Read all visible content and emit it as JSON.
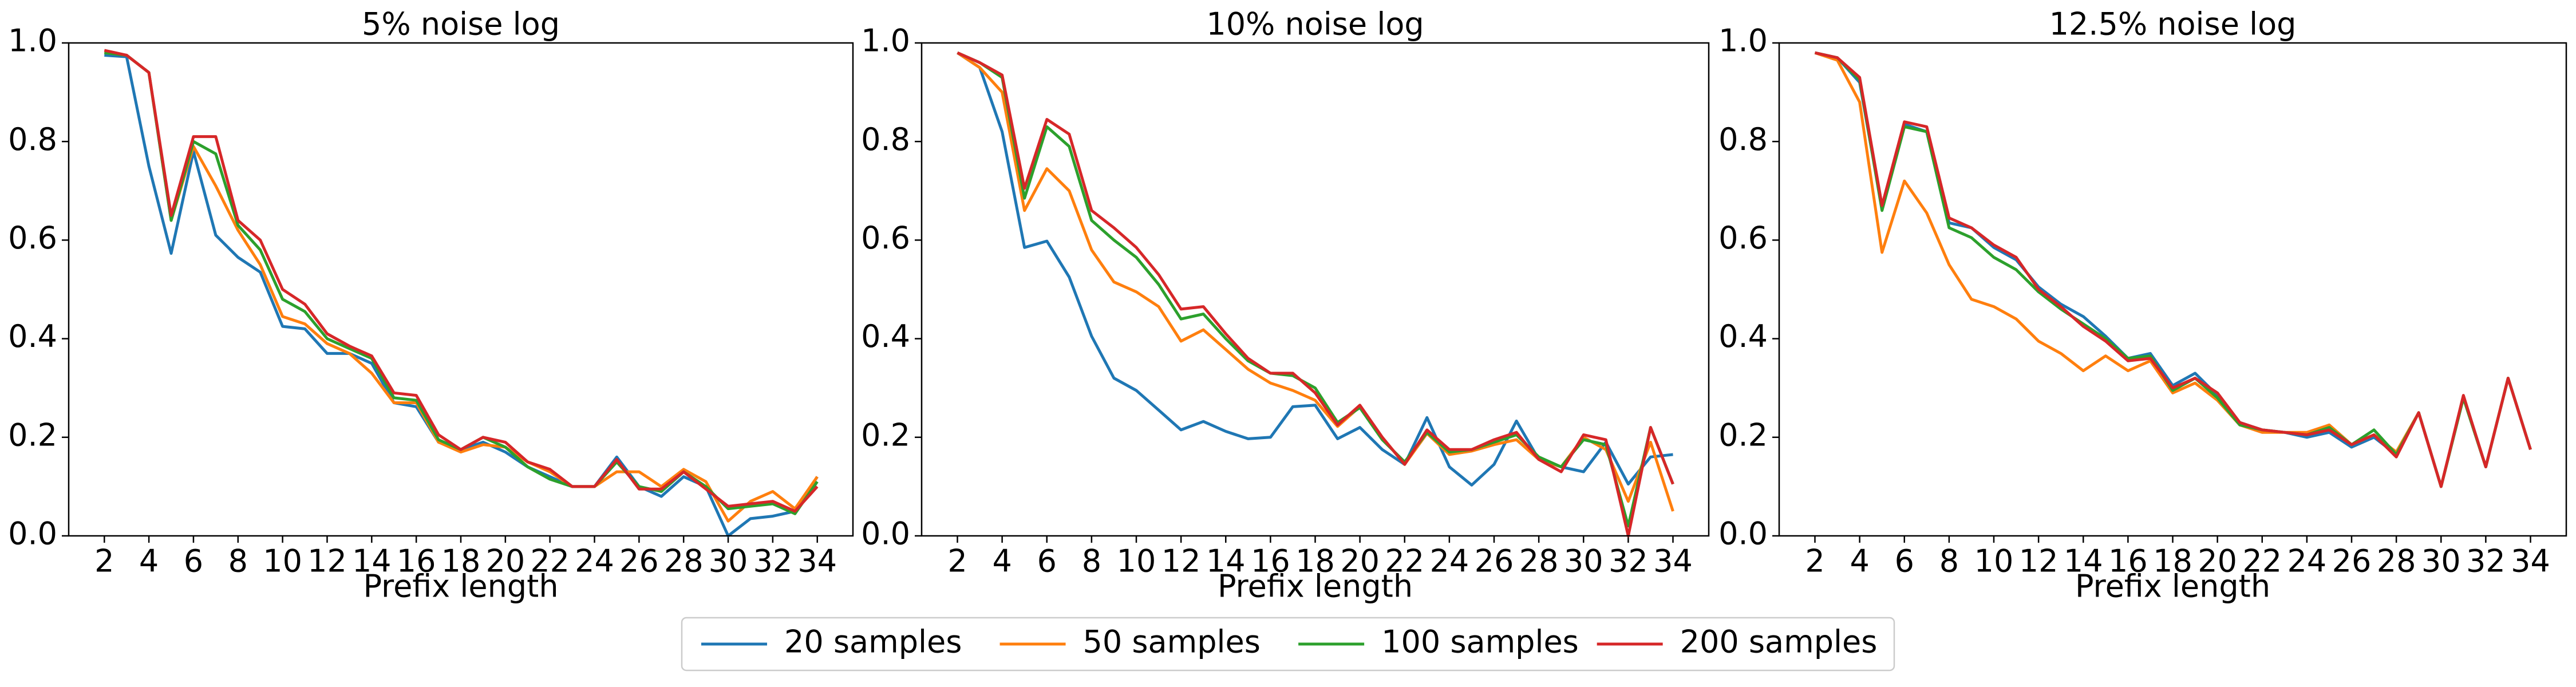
{
  "chart_data": [
    {
      "type": "line",
      "title": "5% noise log",
      "xlabel": "Prefix length",
      "x": [
        2,
        3,
        4,
        5,
        6,
        7,
        8,
        9,
        10,
        11,
        12,
        13,
        14,
        15,
        16,
        17,
        18,
        19,
        20,
        21,
        22,
        23,
        24,
        25,
        26,
        27,
        28,
        29,
        30,
        31,
        32,
        33,
        34
      ],
      "xlim": [
        0.4,
        35.6
      ],
      "xticks": [
        2,
        4,
        6,
        8,
        10,
        12,
        14,
        16,
        18,
        20,
        22,
        24,
        26,
        28,
        30,
        32,
        34
      ],
      "ylim": [
        0,
        1
      ],
      "yticks": [
        {
          "value": 0,
          "label": "0.0"
        },
        0.2,
        0.4,
        0.6,
        0.8,
        {
          "value": 1,
          "label": "1.0"
        }
      ],
      "series": [
        {
          "name": "20 samples",
          "color": "#1f77b4",
          "values": [
            0.975,
            0.972,
            0.75,
            0.573,
            0.78,
            0.61,
            0.565,
            0.535,
            0.425,
            0.42,
            0.37,
            0.37,
            0.35,
            0.27,
            0.262,
            0.19,
            0.175,
            0.19,
            0.17,
            0.14,
            0.12,
            0.1,
            0.1,
            0.16,
            0.1,
            0.08,
            0.12,
            0.1,
            0.0,
            0.035,
            0.04,
            0.05,
            0.12
          ]
        },
        {
          "name": "50 samples",
          "color": "#ff7f0e",
          "values": [
            0.98,
            0.975,
            0.94,
            0.64,
            0.79,
            0.71,
            0.62,
            0.55,
            0.445,
            0.43,
            0.39,
            0.37,
            0.33,
            0.27,
            0.27,
            0.19,
            0.17,
            0.185,
            0.18,
            0.15,
            0.13,
            0.1,
            0.1,
            0.13,
            0.13,
            0.1,
            0.135,
            0.11,
            0.03,
            0.07,
            0.09,
            0.055,
            0.12
          ]
        },
        {
          "name": "100 samples",
          "color": "#2ca02c",
          "values": [
            0.98,
            0.975,
            0.94,
            0.64,
            0.8,
            0.775,
            0.63,
            0.58,
            0.48,
            0.455,
            0.4,
            0.38,
            0.36,
            0.28,
            0.275,
            0.195,
            0.175,
            0.2,
            0.18,
            0.14,
            0.115,
            0.1,
            0.1,
            0.15,
            0.1,
            0.09,
            0.13,
            0.1,
            0.055,
            0.06,
            0.065,
            0.045,
            0.11
          ]
        },
        {
          "name": "200 samples",
          "color": "#d62728",
          "values": [
            0.985,
            0.975,
            0.94,
            0.65,
            0.81,
            0.81,
            0.64,
            0.6,
            0.5,
            0.47,
            0.41,
            0.385,
            0.365,
            0.29,
            0.285,
            0.205,
            0.175,
            0.2,
            0.19,
            0.15,
            0.135,
            0.1,
            0.1,
            0.155,
            0.095,
            0.095,
            0.13,
            0.095,
            0.06,
            0.065,
            0.07,
            0.05,
            0.1
          ]
        }
      ]
    },
    {
      "type": "line",
      "title": "10% noise log",
      "xlabel": "Prefix length",
      "x": [
        2,
        3,
        4,
        5,
        6,
        7,
        8,
        9,
        10,
        11,
        12,
        13,
        14,
        15,
        16,
        17,
        18,
        19,
        20,
        21,
        22,
        23,
        24,
        25,
        26,
        27,
        28,
        29,
        30,
        31,
        32,
        33,
        34
      ],
      "xlim": [
        0.4,
        35.6
      ],
      "xticks": [
        2,
        4,
        6,
        8,
        10,
        12,
        14,
        16,
        18,
        20,
        22,
        24,
        26,
        28,
        30,
        32,
        34
      ],
      "ylim": [
        0,
        1
      ],
      "yticks": [
        {
          "value": 0,
          "label": "0.0"
        },
        0.2,
        0.4,
        0.6,
        0.8,
        {
          "value": 1,
          "label": "1.0"
        }
      ],
      "series": [
        {
          "name": "20 samples",
          "color": "#1f77b4",
          "values": [
            0.98,
            0.95,
            0.82,
            0.585,
            0.598,
            0.525,
            0.405,
            0.32,
            0.295,
            0.255,
            0.215,
            0.232,
            0.212,
            0.197,
            0.2,
            0.262,
            0.265,
            0.197,
            0.22,
            0.175,
            0.145,
            0.24,
            0.14,
            0.103,
            0.145,
            0.233,
            0.155,
            0.14,
            0.13,
            0.19,
            0.105,
            0.16,
            0.165
          ]
        },
        {
          "name": "50 samples",
          "color": "#ff7f0e",
          "values": [
            0.98,
            0.95,
            0.9,
            0.66,
            0.745,
            0.7,
            0.58,
            0.515,
            0.495,
            0.465,
            0.395,
            0.418,
            0.378,
            0.338,
            0.31,
            0.295,
            0.275,
            0.222,
            0.262,
            0.2,
            0.145,
            0.208,
            0.165,
            0.172,
            0.185,
            0.195,
            0.155,
            0.14,
            0.2,
            0.175,
            0.07,
            0.19,
            0.05
          ]
        },
        {
          "name": "100 samples",
          "color": "#2ca02c",
          "values": [
            0.98,
            0.96,
            0.93,
            0.685,
            0.83,
            0.79,
            0.64,
            0.6,
            0.565,
            0.51,
            0.44,
            0.45,
            0.4,
            0.355,
            0.33,
            0.325,
            0.3,
            0.23,
            0.26,
            0.195,
            0.15,
            0.21,
            0.17,
            0.175,
            0.19,
            0.205,
            0.16,
            0.14,
            0.195,
            0.185,
            0.02,
            0.22,
            0.105
          ]
        },
        {
          "name": "200 samples",
          "color": "#d62728",
          "values": [
            0.98,
            0.96,
            0.935,
            0.705,
            0.845,
            0.815,
            0.66,
            0.625,
            0.585,
            0.53,
            0.46,
            0.465,
            0.41,
            0.36,
            0.33,
            0.33,
            0.29,
            0.225,
            0.265,
            0.2,
            0.145,
            0.215,
            0.175,
            0.175,
            0.195,
            0.21,
            0.155,
            0.13,
            0.205,
            0.195,
            0.0,
            0.22,
            0.105
          ]
        }
      ]
    },
    {
      "type": "line",
      "title": "12.5% noise log",
      "xlabel": "Prefix length",
      "x": [
        2,
        3,
        4,
        5,
        6,
        7,
        8,
        9,
        10,
        11,
        12,
        13,
        14,
        15,
        16,
        17,
        18,
        19,
        20,
        21,
        22,
        23,
        24,
        25,
        26,
        27,
        28,
        29,
        30,
        31,
        32,
        33,
        34
      ],
      "xlim": [
        0.4,
        35.6
      ],
      "xticks": [
        2,
        4,
        6,
        8,
        10,
        12,
        14,
        16,
        18,
        20,
        22,
        24,
        26,
        28,
        30,
        32,
        34
      ],
      "ylim": [
        0,
        1
      ],
      "yticks": [
        {
          "value": 0,
          "label": "0.0"
        },
        0.2,
        0.4,
        0.6,
        0.8,
        {
          "value": 1,
          "label": "1.0"
        }
      ],
      "series": [
        {
          "name": "20 samples",
          "color": "#1f77b4",
          "values": [
            0.98,
            0.97,
            0.92,
            0.665,
            0.835,
            0.82,
            0.635,
            0.625,
            0.585,
            0.56,
            0.505,
            0.47,
            0.445,
            0.405,
            0.36,
            0.37,
            0.305,
            0.33,
            0.285,
            0.23,
            0.215,
            0.21,
            0.2,
            0.21,
            0.18,
            0.2,
            0.165,
            0.25,
            0.1,
            0.28,
            0.14,
            0.32,
            0.175
          ]
        },
        {
          "name": "50 samples",
          "color": "#ff7f0e",
          "values": [
            0.98,
            0.965,
            0.88,
            0.575,
            0.72,
            0.655,
            0.55,
            0.48,
            0.465,
            0.44,
            0.395,
            0.37,
            0.335,
            0.365,
            0.335,
            0.355,
            0.29,
            0.31,
            0.275,
            0.225,
            0.21,
            0.21,
            0.21,
            0.225,
            0.185,
            0.205,
            0.17,
            0.25,
            0.1,
            0.28,
            0.14,
            0.32,
            0.175
          ]
        },
        {
          "name": "100 samples",
          "color": "#2ca02c",
          "values": [
            0.98,
            0.97,
            0.925,
            0.66,
            0.83,
            0.82,
            0.625,
            0.605,
            0.565,
            0.54,
            0.495,
            0.46,
            0.43,
            0.4,
            0.36,
            0.365,
            0.295,
            0.32,
            0.28,
            0.225,
            0.215,
            0.21,
            0.205,
            0.22,
            0.185,
            0.215,
            0.165,
            0.25,
            0.1,
            0.28,
            0.14,
            0.32,
            0.175
          ]
        },
        {
          "name": "200 samples",
          "color": "#d62728",
          "values": [
            0.98,
            0.97,
            0.93,
            0.67,
            0.84,
            0.83,
            0.645,
            0.625,
            0.59,
            0.565,
            0.5,
            0.465,
            0.425,
            0.395,
            0.355,
            0.36,
            0.3,
            0.32,
            0.29,
            0.23,
            0.215,
            0.21,
            0.205,
            0.215,
            0.185,
            0.205,
            0.16,
            0.25,
            0.1,
            0.285,
            0.14,
            0.32,
            0.175
          ]
        }
      ]
    }
  ]
}
